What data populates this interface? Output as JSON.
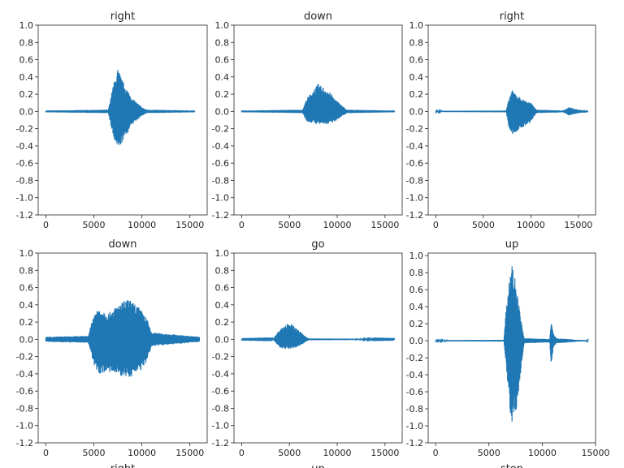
{
  "chart_data": [
    {
      "type": "line",
      "title": "right",
      "xlabel": "",
      "xlim": [
        -800,
        16800
      ],
      "ylim": [
        -1.2,
        1.0
      ],
      "xticks": [
        0,
        5000,
        10000,
        15000
      ],
      "yticks": [
        -1.2,
        -1.0,
        -0.8,
        -0.6,
        -0.4,
        -0.2,
        0.0,
        0.2,
        0.4,
        0.6,
        0.8,
        1.0
      ],
      "color": "#1f77b4",
      "envelope": {
        "x": [
          0,
          6500,
          7000,
          7500,
          8000,
          9000,
          10000,
          10500,
          15500
        ],
        "upper": [
          0.01,
          0.02,
          0.3,
          0.5,
          0.35,
          0.15,
          0.05,
          0.02,
          0.01
        ],
        "lower": [
          -0.01,
          -0.02,
          -0.3,
          -0.45,
          -0.35,
          -0.15,
          -0.05,
          -0.02,
          -0.01
        ]
      }
    },
    {
      "type": "line",
      "title": "down",
      "xlabel": "",
      "xlim": [
        -800,
        16800
      ],
      "ylim": [
        -1.2,
        1.0
      ],
      "xticks": [
        0,
        5000,
        10000,
        15000
      ],
      "yticks": [
        -1.2,
        -1.0,
        -0.8,
        -0.6,
        -0.4,
        -0.2,
        0.0,
        0.2,
        0.4,
        0.6,
        0.8,
        1.0
      ],
      "color": "#1f77b4",
      "envelope": {
        "x": [
          0,
          6400,
          6800,
          8000,
          9000,
          10000,
          11000,
          16000
        ],
        "upper": [
          0.01,
          0.02,
          0.15,
          0.32,
          0.25,
          0.12,
          0.02,
          0.01
        ],
        "lower": [
          -0.01,
          -0.02,
          -0.12,
          -0.15,
          -0.15,
          -0.1,
          -0.02,
          -0.01
        ]
      }
    },
    {
      "type": "line",
      "title": "right",
      "xlabel": "",
      "xlim": [
        -800,
        16800
      ],
      "ylim": [
        -1.2,
        1.0
      ],
      "xticks": [
        0,
        5000,
        10000,
        15000
      ],
      "yticks": [
        -1.2,
        -1.0,
        -0.8,
        -0.6,
        -0.4,
        -0.2,
        0.0,
        0.2,
        0.4,
        0.6,
        0.8,
        1.0
      ],
      "color": "#1f77b4",
      "envelope": {
        "x": [
          0,
          7400,
          7700,
          8000,
          9000,
          10000,
          10600,
          13400,
          14000,
          15000,
          16000
        ],
        "upper": [
          0.005,
          0.01,
          0.15,
          0.25,
          0.15,
          0.1,
          0.02,
          0.01,
          0.05,
          0.02,
          0.01
        ],
        "lower": [
          -0.005,
          -0.01,
          -0.2,
          -0.27,
          -0.2,
          -0.12,
          -0.02,
          -0.01,
          -0.05,
          -0.02,
          -0.01
        ]
      }
    },
    {
      "type": "line",
      "title": "down",
      "xlabel": "right",
      "xlim": [
        -800,
        16800
      ],
      "ylim": [
        -1.2,
        1.0
      ],
      "xticks": [
        0,
        5000,
        10000,
        15000
      ],
      "yticks": [
        -1.2,
        -1.0,
        -0.8,
        -0.6,
        -0.4,
        -0.2,
        0.0,
        0.2,
        0.4,
        0.6,
        0.8,
        1.0
      ],
      "color": "#1f77b4",
      "envelope": {
        "x": [
          0,
          4400,
          5000,
          5500,
          6500,
          7500,
          8500,
          9500,
          10500,
          11000,
          13000,
          16000
        ],
        "upper": [
          0.03,
          0.04,
          0.3,
          0.37,
          0.3,
          0.4,
          0.47,
          0.4,
          0.25,
          0.08,
          0.06,
          0.03
        ],
        "lower": [
          -0.03,
          -0.04,
          -0.3,
          -0.4,
          -0.38,
          -0.42,
          -0.45,
          -0.4,
          -0.28,
          -0.08,
          -0.06,
          -0.03
        ]
      }
    },
    {
      "type": "line",
      "title": "go",
      "xlabel": "up",
      "xlim": [
        -800,
        16800
      ],
      "ylim": [
        -1.2,
        1.0
      ],
      "xticks": [
        0,
        5000,
        10000,
        15000
      ],
      "yticks": [
        -1.2,
        -1.0,
        -0.8,
        -0.6,
        -0.4,
        -0.2,
        0.0,
        0.2,
        0.4,
        0.6,
        0.8,
        1.0
      ],
      "color": "#1f77b4",
      "envelope": {
        "x": [
          0,
          3300,
          4000,
          5000,
          6000,
          7000,
          16000
        ],
        "upper": [
          0.003,
          0.005,
          0.12,
          0.2,
          0.1,
          0.01,
          0.003
        ],
        "lower": [
          -0.003,
          -0.005,
          -0.1,
          -0.12,
          -0.08,
          -0.01,
          -0.003
        ]
      }
    },
    {
      "type": "line",
      "title": "up",
      "xlabel": "stop",
      "xlim": [
        -700,
        15000
      ],
      "ylim": [
        -1.2,
        1.03
      ],
      "xticks": [
        0,
        5000,
        10000,
        15000
      ],
      "yticks": [
        -1.2,
        -1.0,
        -0.8,
        -0.6,
        -0.4,
        -0.2,
        0.0,
        0.2,
        0.4,
        0.6,
        0.8,
        1.0
      ],
      "color": "#1f77b4",
      "envelope": {
        "x": [
          0,
          6400,
          6600,
          7100,
          7600,
          8000,
          8300,
          10700,
          10850,
          11000,
          11300,
          12500,
          13200,
          14300
        ],
        "upper": [
          0.005,
          0.01,
          0.4,
          0.95,
          0.65,
          0.25,
          0.03,
          0.02,
          0.25,
          0.1,
          0.03,
          0.02,
          0.01,
          0.005
        ],
        "lower": [
          -0.005,
          -0.01,
          -0.3,
          -0.98,
          -0.8,
          -0.35,
          -0.03,
          -0.02,
          -0.35,
          -0.1,
          -0.03,
          -0.02,
          -0.01,
          -0.005
        ]
      }
    }
  ]
}
